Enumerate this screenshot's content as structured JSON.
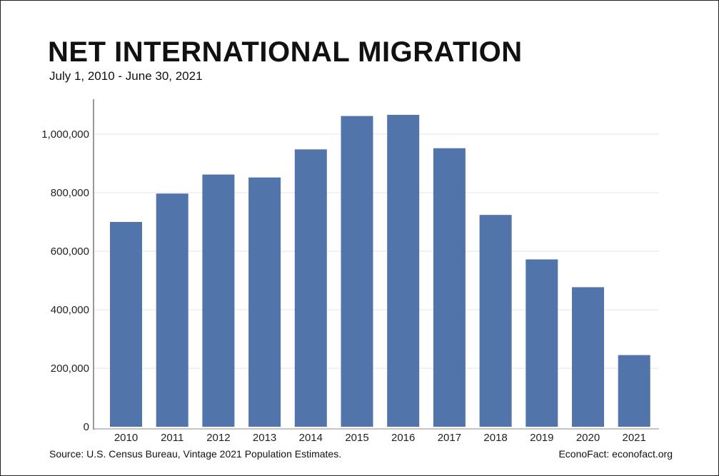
{
  "chart_data": {
    "type": "bar",
    "title": "NET INTERNATIONAL MIGRATION",
    "subtitle": "July 1, 2010 - June 30, 2021",
    "categories": [
      "2010",
      "2011",
      "2012",
      "2013",
      "2014",
      "2015",
      "2016",
      "2017",
      "2018",
      "2019",
      "2020",
      "2021"
    ],
    "values": [
      700000,
      797000,
      862000,
      852000,
      948000,
      1062000,
      1066000,
      952000,
      724000,
      572000,
      477000,
      245000
    ],
    "yticks": [
      0,
      200000,
      400000,
      600000,
      800000,
      1000000
    ],
    "ytick_labels": [
      "0",
      "200,000",
      "400,000",
      "600,000",
      "800,000",
      "1,000,000"
    ],
    "ylim": [
      0,
      1100000
    ],
    "xlabel": "",
    "ylabel": "",
    "grid": true,
    "bar_color": "#5174aa"
  },
  "footer": {
    "source": "Source: U.S. Census Bureau, Vintage 2021 Population Estimates.",
    "credit": "EconoFact: econofact.org"
  }
}
